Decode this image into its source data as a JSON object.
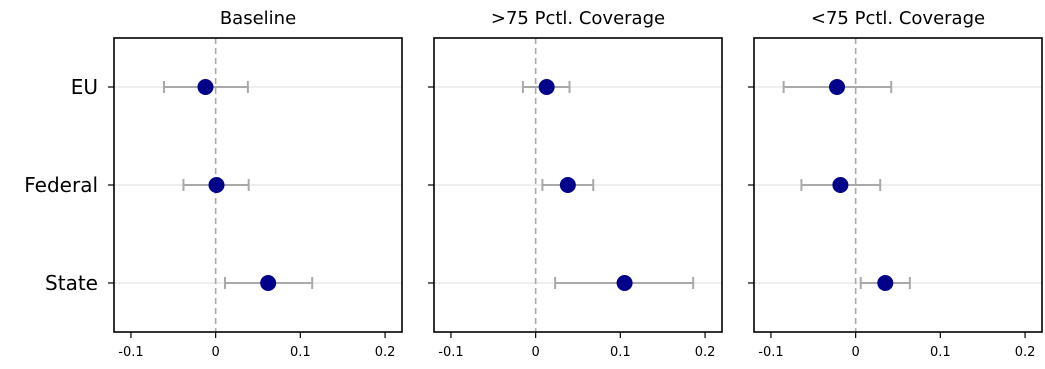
{
  "chart_data": {
    "type": "scatter",
    "subtype": "coefficient-plot-with-error-bars",
    "categories": [
      "EU",
      "Federal",
      "State"
    ],
    "x_ticks": [
      -0.1,
      0,
      0.1,
      0.2
    ],
    "x_tick_labels": [
      "-0.1",
      "0",
      "0.1",
      "0.2"
    ],
    "xlim": [
      -0.12,
      0.22
    ],
    "reference_line_x": 0,
    "grid": "horizontal",
    "colors": {
      "point": "#00008B",
      "error_bar": "#A9A9A9",
      "reference_line": "#A9A9A9",
      "gridline": "#DDDDDD"
    },
    "panels": [
      {
        "title": "Baseline",
        "points": [
          {
            "category": "EU",
            "estimate": -0.012,
            "ci_low": -0.061,
            "ci_high": 0.038
          },
          {
            "category": "Federal",
            "estimate": 0.001,
            "ci_low": -0.038,
            "ci_high": 0.039
          },
          {
            "category": "State",
            "estimate": 0.062,
            "ci_low": 0.011,
            "ci_high": 0.114
          }
        ]
      },
      {
        "title": ">75 Pctl. Coverage",
        "points": [
          {
            "category": "EU",
            "estimate": 0.013,
            "ci_low": -0.015,
            "ci_high": 0.04
          },
          {
            "category": "Federal",
            "estimate": 0.038,
            "ci_low": 0.008,
            "ci_high": 0.068
          },
          {
            "category": "State",
            "estimate": 0.105,
            "ci_low": 0.023,
            "ci_high": 0.186
          }
        ]
      },
      {
        "title": "<75 Pctl. Coverage",
        "points": [
          {
            "category": "EU",
            "estimate": -0.022,
            "ci_low": -0.085,
            "ci_high": 0.042
          },
          {
            "category": "Federal",
            "estimate": -0.018,
            "ci_low": -0.064,
            "ci_high": 0.029
          },
          {
            "category": "State",
            "estimate": 0.035,
            "ci_low": 0.006,
            "ci_high": 0.064
          }
        ]
      }
    ]
  }
}
